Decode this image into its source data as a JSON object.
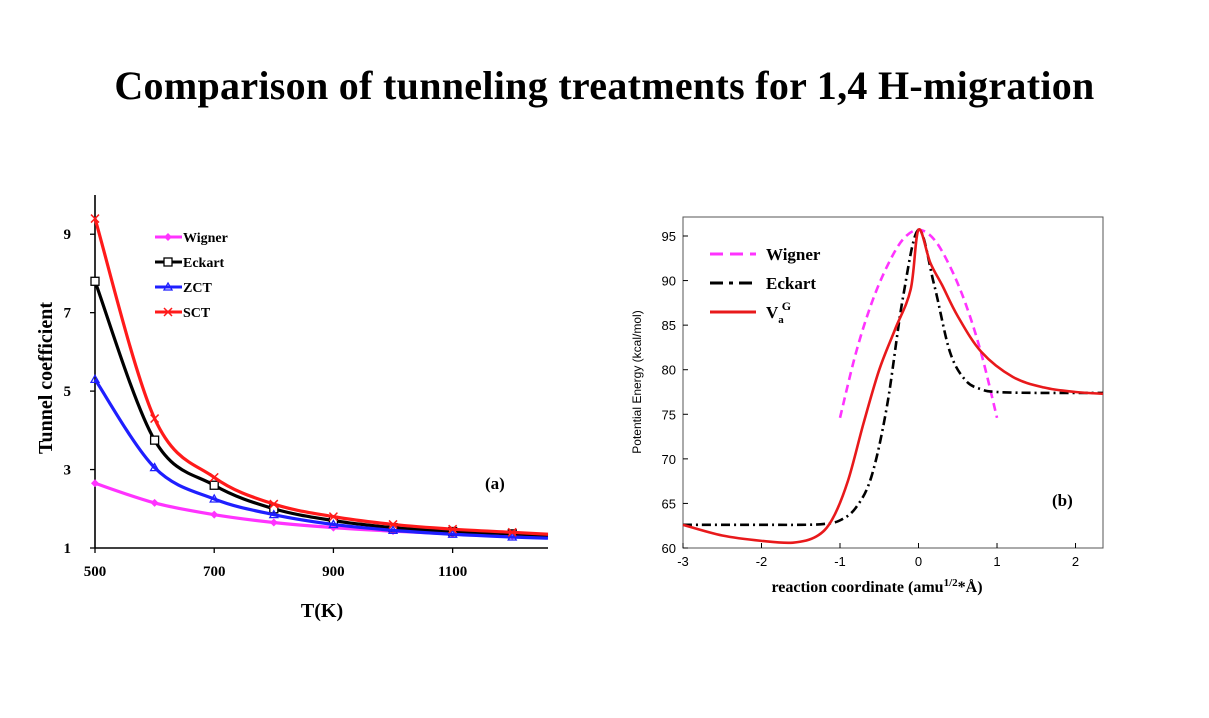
{
  "title": "Comparison of tunneling treatments for 1,4 H-migration",
  "colors": {
    "wigner": "#ff33ff",
    "eckart": "#000000",
    "zct": "#1f1fff",
    "sct": "#ff1a1a",
    "vag": "#e8191b"
  },
  "chart_data": [
    {
      "type": "line",
      "panel_label": "(a)",
      "xlabel": "T(K)",
      "ylabel": "Tunnel coefficient",
      "xlim": [
        500,
        1260
      ],
      "ylim": [
        1,
        10
      ],
      "xticks": [
        500,
        700,
        900,
        1100
      ],
      "yticks": [
        1,
        3,
        5,
        7,
        9
      ],
      "legend_position": "top-left",
      "series": [
        {
          "name": "Wigner",
          "color": "#ff33ff",
          "marker": "diamond",
          "x": [
            500,
            600,
            700,
            800,
            900,
            1000,
            1100,
            1200,
            1260
          ],
          "y": [
            2.65,
            2.15,
            1.85,
            1.65,
            1.52,
            1.43,
            1.36,
            1.31,
            1.28
          ]
        },
        {
          "name": "Eckart",
          "color": "#000000",
          "marker": "square",
          "x": [
            500,
            600,
            700,
            800,
            900,
            1000,
            1100,
            1200,
            1260
          ],
          "y": [
            7.8,
            3.75,
            2.6,
            2.0,
            1.7,
            1.52,
            1.42,
            1.36,
            1.32
          ]
        },
        {
          "name": "ZCT",
          "color": "#1f1fff",
          "marker": "triangle",
          "x": [
            500,
            600,
            700,
            800,
            900,
            1000,
            1100,
            1200,
            1260
          ],
          "y": [
            5.3,
            3.05,
            2.25,
            1.85,
            1.6,
            1.45,
            1.35,
            1.28,
            1.25
          ]
        },
        {
          "name": "SCT",
          "color": "#ff1a1a",
          "marker": "x",
          "x": [
            500,
            600,
            700,
            800,
            900,
            1000,
            1100,
            1200,
            1260
          ],
          "y": [
            9.4,
            4.3,
            2.8,
            2.12,
            1.8,
            1.6,
            1.48,
            1.4,
            1.35
          ]
        }
      ]
    },
    {
      "type": "line",
      "panel_label": "(b)",
      "xlabel_main": "reaction coordinate (amu",
      "xlabel_sup": "1/2",
      "xlabel_tail": "*Å)",
      "ylabel": "Potential Energy (kcal/mol)",
      "xlim": [
        -3,
        2.35
      ],
      "ylim": [
        60,
        97
      ],
      "xticks": [
        -3,
        -2,
        -1,
        0,
        1,
        2
      ],
      "yticks": [
        60,
        65,
        70,
        75,
        80,
        85,
        90,
        95
      ],
      "legend_position": "top-left",
      "series": [
        {
          "name": "Wigner",
          "color": "#ff33ff",
          "dash": "dashed",
          "x": [
            -1.0,
            -0.8,
            -0.6,
            -0.4,
            -0.2,
            0.0,
            0.2,
            0.4,
            0.6,
            0.8,
            1.0
          ],
          "y": [
            74.6,
            81.8,
            87.4,
            91.6,
            94.6,
            95.7,
            94.6,
            91.6,
            87.4,
            81.8,
            74.6
          ]
        },
        {
          "name": "Eckart",
          "color": "#000000",
          "dash": "dash-dot",
          "x": [
            -3.0,
            -2.0,
            -1.5,
            -1.2,
            -1.0,
            -0.8,
            -0.6,
            -0.4,
            -0.2,
            0.0,
            0.2,
            0.4,
            0.6,
            0.8,
            1.0,
            1.5,
            2.35
          ],
          "y": [
            62.6,
            62.6,
            62.6,
            62.7,
            63.1,
            64.5,
            68.0,
            76.0,
            88.0,
            95.7,
            89.5,
            82.0,
            78.8,
            77.8,
            77.5,
            77.4,
            77.4
          ]
        },
        {
          "name_main": "V",
          "name_sub": "a",
          "name_sup": "G",
          "color": "#e8191b",
          "dash": "solid",
          "x": [
            -3.0,
            -2.5,
            -2.0,
            -1.6,
            -1.3,
            -1.1,
            -0.9,
            -0.7,
            -0.5,
            -0.3,
            -0.1,
            0.0,
            0.15,
            0.3,
            0.5,
            0.8,
            1.2,
            1.6,
            2.0,
            2.35
          ],
          "y": [
            62.6,
            61.4,
            60.8,
            60.6,
            61.3,
            63.2,
            67.5,
            74.0,
            80.0,
            84.5,
            89.0,
            95.7,
            92.0,
            89.5,
            86.0,
            82.0,
            79.2,
            78.0,
            77.5,
            77.3
          ]
        }
      ]
    }
  ]
}
